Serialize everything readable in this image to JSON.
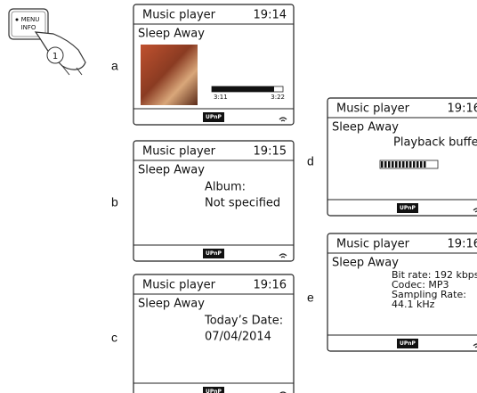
{
  "button": {
    "labels": [
      "MENU",
      "INFO"
    ],
    "step": "1"
  },
  "screens": [
    {
      "letter": "a",
      "title": "Music player",
      "time": "19:14",
      "track": "Sleep Away",
      "elapsed": "3:11",
      "total": "3:22",
      "lines": [],
      "badge": "UPnP"
    },
    {
      "letter": "b",
      "title": "Music player",
      "time": "19:15",
      "track": "Sleep Away",
      "lines": [
        "Album:",
        "Not specified"
      ],
      "badge": "UPnP"
    },
    {
      "letter": "c",
      "title": "Music player",
      "time": "19:16",
      "track": "Sleep Away",
      "lines": [
        "Today’s Date:",
        "07/04/2014"
      ],
      "badge": "UPnP"
    },
    {
      "letter": "d",
      "title": "Music player",
      "time": "19:16",
      "track": "Sleep Away",
      "lines": [
        "Playback buffer"
      ],
      "badge": "UPnP"
    },
    {
      "letter": "e",
      "title": "Music player",
      "time": "19:16",
      "track": "Sleep Away",
      "lines": [
        "Bit rate: 192 kbps",
        "Codec: MP3",
        "Sampling Rate:",
        "44.1 kHz"
      ],
      "badge": "UPnP"
    }
  ]
}
